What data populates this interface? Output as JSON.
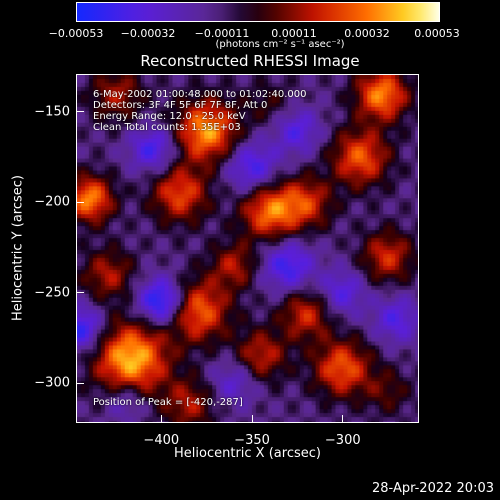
{
  "colorbar": {
    "ticks": [
      "-0.00053",
      "-0.00032",
      "-0.00011",
      "0.00011",
      "0.00032",
      "0.00053"
    ],
    "units": "(photons cm⁻² s⁻¹ asec⁻²)"
  },
  "annotations": {
    "time_range": "6-May-2002 01:00:48.000 to 01:02:40.000",
    "detectors": "Detectors: 3F 4F 5F 6F 7F 8F, Att 0",
    "energy_range": "Energy Range: 12.0 - 25.0 keV",
    "algorithm": "Clean     Total counts: 1.35E+03",
    "peak": "Position of Peak = [-420,-287]"
  },
  "timestamp": "28-Apr-2022 20:03",
  "colors": {
    "background": "#000000",
    "frame": "#ffffff"
  },
  "chart_data": {
    "type": "heatmap",
    "title": "Reconstructed RHESSI Image",
    "xlabel": "Heliocentric X (arcsec)",
    "ylabel": "Heliocentric Y (arcsec)",
    "xlim": [
      -447,
      -258
    ],
    "ylim": [
      -322,
      -129
    ],
    "xticks": [
      -400,
      -350,
      -300
    ],
    "yticks": [
      -150,
      -200,
      -250,
      -300
    ],
    "color_range": [
      -0.00053,
      0.00053
    ],
    "colormap": "blue-purple-black-red-orange-yellow-white",
    "blobs": [
      {
        "x": -417,
        "y": -287,
        "value": 0.00053,
        "r": 14
      },
      {
        "x": -380,
        "y": -260,
        "value": 0.0004,
        "r": 12
      },
      {
        "x": -375,
        "y": -160,
        "value": 0.00048,
        "r": 12
      },
      {
        "x": -390,
        "y": -195,
        "value": 0.00035,
        "r": 11
      },
      {
        "x": -340,
        "y": -205,
        "value": 0.00042,
        "r": 11
      },
      {
        "x": -320,
        "y": -200,
        "value": 0.0003,
        "r": 10
      },
      {
        "x": -290,
        "y": -175,
        "value": 0.00038,
        "r": 11
      },
      {
        "x": -278,
        "y": -140,
        "value": 0.00045,
        "r": 10
      },
      {
        "x": -440,
        "y": -198,
        "value": 0.00045,
        "r": 9
      },
      {
        "x": -430,
        "y": -240,
        "value": 0.00025,
        "r": 10
      },
      {
        "x": -360,
        "y": -235,
        "value": 0.00025,
        "r": 9
      },
      {
        "x": -320,
        "y": -262,
        "value": 0.0003,
        "r": 10
      },
      {
        "x": -345,
        "y": -285,
        "value": 0.00028,
        "r": 10
      },
      {
        "x": -300,
        "y": -292,
        "value": 0.00038,
        "r": 11
      },
      {
        "x": -385,
        "y": -312,
        "value": 0.00025,
        "r": 10
      },
      {
        "x": -275,
        "y": -305,
        "value": 0.00015,
        "r": 9
      },
      {
        "x": -275,
        "y": -230,
        "value": 0.0003,
        "r": 10
      },
      {
        "x": -425,
        "y": -140,
        "value": 0.00025,
        "r": 10
      },
      {
        "x": -340,
        "y": -145,
        "value": 0.00012,
        "r": 9
      },
      {
        "x": -400,
        "y": -255,
        "value": -0.00045,
        "r": 9
      },
      {
        "x": -350,
        "y": -180,
        "value": -0.0003,
        "r": 10
      },
      {
        "x": -405,
        "y": -170,
        "value": -0.0003,
        "r": 9
      },
      {
        "x": -325,
        "y": -160,
        "value": -0.00025,
        "r": 9
      },
      {
        "x": -330,
        "y": -235,
        "value": -0.00032,
        "r": 10
      },
      {
        "x": -445,
        "y": -270,
        "value": -0.00035,
        "r": 9
      },
      {
        "x": -300,
        "y": -250,
        "value": -0.00025,
        "r": 9
      },
      {
        "x": -420,
        "y": -310,
        "value": -0.0002,
        "r": 8
      },
      {
        "x": -360,
        "y": -300,
        "value": -0.0002,
        "r": 9
      },
      {
        "x": -270,
        "y": -265,
        "value": -0.00025,
        "r": 9
      }
    ]
  }
}
